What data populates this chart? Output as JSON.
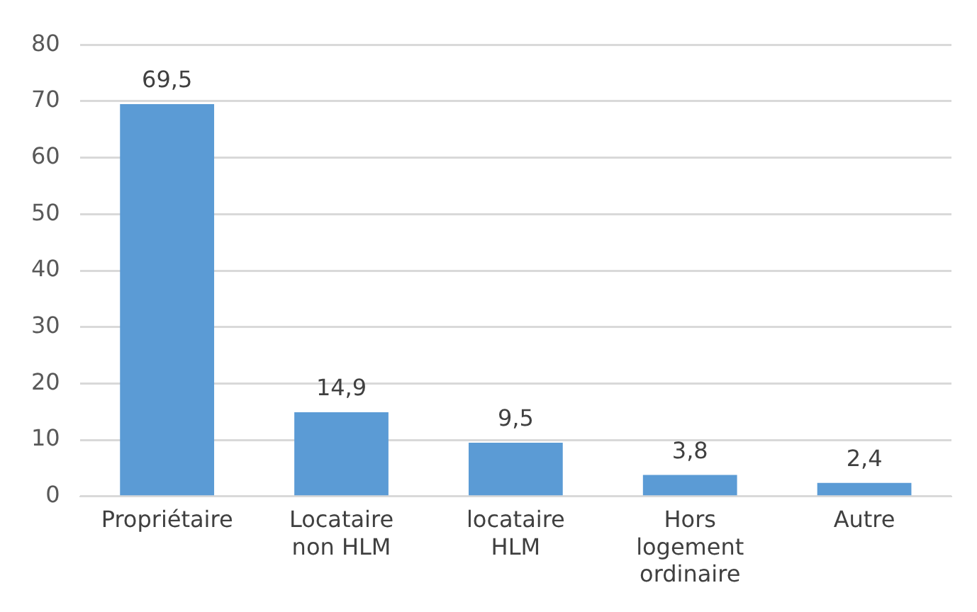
{
  "chart_data": {
    "type": "bar",
    "categories": [
      "Propriétaire",
      "Locataire non HLM",
      "locataire HLM",
      "Hors logement ordinaire",
      "Autre"
    ],
    "values": [
      69.5,
      14.9,
      9.5,
      3.8,
      2.4
    ],
    "value_labels": [
      "69,5",
      "14,9",
      "9,5",
      "3,8",
      "2,4"
    ],
    "color": "#5b9bd5",
    "ylim": [
      0,
      80
    ],
    "yticks": [
      0,
      10,
      20,
      30,
      40,
      50,
      60,
      70,
      80
    ],
    "grid": "y",
    "legend": false
  }
}
